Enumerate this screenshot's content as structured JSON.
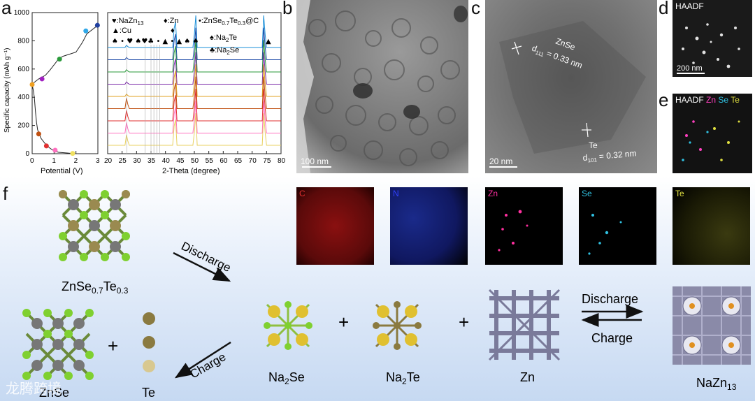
{
  "panels": {
    "a": {
      "label": "a",
      "chart_data": [
        {
          "type": "line",
          "title": "",
          "xlabel": "Potential (V)",
          "ylabel": "Specific capacity (mAh g⁻¹)",
          "xlim": [
            0,
            3
          ],
          "ylim": [
            0,
            1000
          ],
          "xticks": [
            "0",
            "1",
            "2",
            "3"
          ],
          "yticks": [
            "0",
            "200",
            "400",
            "600",
            "800",
            "1000"
          ],
          "series": [
            {
              "name": "",
              "points": [
                [
                  3.0,
                  910
                ],
                [
                  2.5,
                  850
                ],
                [
                  2.3,
                  790
                ],
                [
                  2.0,
                  720
                ],
                [
                  1.4,
                  690
                ],
                [
                  1.2,
                  670
                ],
                [
                  0.8,
                  590
                ],
                [
                  0.6,
                  555
                ],
                [
                  0.3,
                  530
                ],
                [
                  0.05,
                  500
                ],
                [
                  0.0,
                  490
                ],
                [
                  0.05,
                  450
                ],
                [
                  0.1,
                  400
                ],
                [
                  0.15,
                  300
                ],
                [
                  0.2,
                  220
                ],
                [
                  0.25,
                  170
                ],
                [
                  0.4,
                  110
                ],
                [
                  0.6,
                  70
                ],
                [
                  0.8,
                  40
                ],
                [
                  1.0,
                  20
                ],
                [
                  1.2,
                  10
                ],
                [
                  1.6,
                  5
                ],
                [
                  1.8,
                  2
                ]
              ]
            }
          ],
          "markers": [
            {
              "x": 0.0,
              "y": 490,
              "color": "#f0a020"
            },
            {
              "x": 0.45,
              "y": 530,
              "color": "#a020c0"
            },
            {
              "x": 1.25,
              "y": 670,
              "color": "#2a9a3a"
            },
            {
              "x": 2.45,
              "y": 870,
              "color": "#30a8e8"
            },
            {
              "x": 2.98,
              "y": 910,
              "color": "#2040a0"
            },
            {
              "x": 0.3,
              "y": 140,
              "color": "#c05010"
            },
            {
              "x": 0.65,
              "y": 55,
              "color": "#e03030"
            },
            {
              "x": 1.05,
              "y": 25,
              "color": "#ff70c0"
            },
            {
              "x": 1.85,
              "y": 2,
              "color": "#f0e060"
            }
          ]
        },
        {
          "type": "line",
          "title": "",
          "xlabel": "2-Theta (degree)",
          "ylabel": "",
          "xlim": [
            20,
            80
          ],
          "xticks": [
            "20",
            "25",
            "30",
            "35",
            "40",
            "45",
            "50",
            "55",
            "60",
            "65",
            "70",
            "75",
            "80"
          ],
          "legend_entries": [
            "♥:NaZn13",
            "♦:Zn",
            "•:ZnSe0.7Te0.3@C",
            "▲:Cu",
            "♠:Na2Te",
            "♣:Na2Se"
          ],
          "series_colors": [
            "#1a8fd8",
            "#1e4aa8",
            "#2a9a3a",
            "#7a2aa8",
            "#e0a020",
            "#c05010",
            "#e03030",
            "#ff70c0",
            "#e8d060"
          ],
          "peaks": [
            26.6,
            43.3,
            50.4,
            74.1
          ]
        }
      ]
    },
    "b": {
      "label": "b",
      "scale": "100 nm"
    },
    "c": {
      "label": "c",
      "phase1": "ZnSe",
      "d1_sub": "111",
      "d1_val": " = 0.33 nm",
      "phase2": "Te",
      "d2_sub": "101",
      "d2_val": " = 0.32 nm",
      "scale": "20 nm"
    },
    "d": {
      "label": "d",
      "title": "HAADF",
      "scale": "200 nm"
    },
    "e": {
      "label": "e",
      "title": "HAADF",
      "elements": [
        "Zn",
        "Se",
        "Te"
      ],
      "colors": [
        "#ff40c0",
        "#30c0e0",
        "#e0e040"
      ]
    },
    "maps": [
      {
        "label": "C",
        "color": "#e03030"
      },
      {
        "label": "N",
        "color": "#3040ff"
      },
      {
        "label": "Zn",
        "color": "#ff30a0"
      },
      {
        "label": "Se",
        "color": "#30c0e0"
      },
      {
        "label": "Te",
        "color": "#e0e040"
      }
    ],
    "f": {
      "label": "f",
      "discharge": "Discharge",
      "charge": "Charge",
      "znsete": "ZnSe",
      "znsete_sub1": "0.7",
      "znsete_te": "Te",
      "znsete_sub2": "0.3",
      "na2se": "Na",
      "na2se_sub": "2",
      "na2se_tail": "Se",
      "na2te": "Na",
      "na2te_sub": "2",
      "na2te_tail": "Te",
      "zn": "Zn",
      "nazn": "NaZn",
      "nazn_sub": "13",
      "znse": "ZnSe",
      "te": "Te",
      "plus": "+"
    }
  },
  "watermark": "龙腾跨境"
}
